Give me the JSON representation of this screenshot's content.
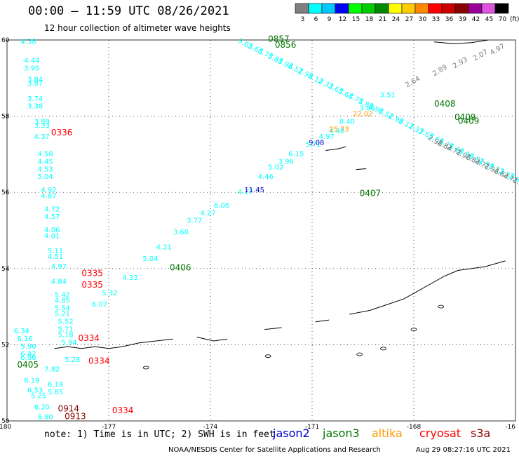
{
  "header": {
    "title": "00:00 — 11:59 UTC 08/26/2021",
    "subtitle": "12 hour collection of altimeter wave heights"
  },
  "colorbar": {
    "unit": "(ft)",
    "bins": [
      {
        "label": "3",
        "color": "#7f7f7f"
      },
      {
        "label": "6",
        "color": "#00ffff"
      },
      {
        "label": "9",
        "color": "#00c8ff"
      },
      {
        "label": "12",
        "color": "#0000ff"
      },
      {
        "label": "15",
        "color": "#00ff00"
      },
      {
        "label": "18",
        "color": "#00cc00"
      },
      {
        "label": "21",
        "color": "#008800"
      },
      {
        "label": "24",
        "color": "#ffff00"
      },
      {
        "label": "27",
        "color": "#ffcc00"
      },
      {
        "label": "30",
        "color": "#ff8800"
      },
      {
        "label": "33",
        "color": "#ff0000"
      },
      {
        "label": "36",
        "color": "#cc0000"
      },
      {
        "label": "39",
        "color": "#880000"
      },
      {
        "label": "42",
        "color": "#990099"
      },
      {
        "label": "45",
        "color": "#dd55dd"
      },
      {
        "label": "70",
        "color": "#000000"
      }
    ]
  },
  "chart_data": {
    "type": "scatter",
    "title": "00:00 — 11:59 UTC 08/26/2021",
    "subtitle": "12 hour collection of altimeter wave heights",
    "xlim": [
      -180,
      -165
    ],
    "ylim": [
      50,
      60
    ],
    "x_ticks": [
      "-180",
      "-177",
      "-174",
      "-171",
      "-168",
      "-16"
    ],
    "y_ticks": [
      "60",
      "58",
      "56",
      "54",
      "52",
      "50"
    ],
    "grid": true,
    "series": [
      {
        "name": "jason2",
        "color": "#0000cc",
        "points": [
          {
            "lon": -171.1,
            "lat": 57.25,
            "swh": 9.08
          },
          {
            "lon": -173.0,
            "lat": 56.0,
            "swh": 11.45
          }
        ]
      },
      {
        "name": "jason3",
        "color": "#007700",
        "points": [
          {
            "lon": -169.6,
            "lat": 55.9,
            "swh": 0.0,
            "time": "0407"
          },
          {
            "lon": -167.4,
            "lat": 58.25,
            "swh": 0.0,
            "time": "0408"
          },
          {
            "lon": -175.2,
            "lat": 53.95,
            "swh": 0.0,
            "time": "0406"
          },
          {
            "lon": -179.7,
            "lat": 51.4,
            "swh": 0.0,
            "time": "0405"
          }
        ]
      },
      {
        "name": "altika",
        "color": "#ff9900",
        "points": [
          {
            "lon": -170.5,
            "lat": 57.6,
            "swh": 25.73
          },
          {
            "lon": -169.8,
            "lat": 58.0,
            "swh": 22.02
          }
        ]
      },
      {
        "name": "cryosat",
        "color": "#ff0000",
        "points": [
          {
            "lon": -178.7,
            "lat": 57.5,
            "time": "0336"
          },
          {
            "lon": -177.8,
            "lat": 53.8,
            "time": "0335"
          },
          {
            "lon": -177.8,
            "lat": 53.5,
            "time": "0335"
          },
          {
            "lon": -177.9,
            "lat": 52.1,
            "time": "0334"
          },
          {
            "lon": -177.6,
            "lat": 51.5,
            "time": "0334"
          },
          {
            "lon": -176.9,
            "lat": 50.2,
            "time": "0334"
          }
        ]
      },
      {
        "name": "s3a",
        "color": "#8b0000",
        "points": [
          {
            "lon": -178.5,
            "lat": 50.25,
            "time": "0914"
          },
          {
            "lon": -178.3,
            "lat": 50.05,
            "time": "0913"
          }
        ]
      }
    ],
    "tracks": [
      {
        "name": "west-track",
        "color": "#00ffff",
        "values": [
          {
            "lon": -179.6,
            "lat": 59.9,
            "v": "4.38"
          },
          {
            "lon": -179.5,
            "lat": 59.4,
            "v": "4.44"
          },
          {
            "lon": -179.5,
            "lat": 59.2,
            "v": "3.95"
          },
          {
            "lon": -179.4,
            "lat": 58.9,
            "v": "3.84"
          },
          {
            "lon": -179.4,
            "lat": 58.8,
            "v": "3.87"
          },
          {
            "lon": -179.4,
            "lat": 58.4,
            "v": "3.74"
          },
          {
            "lon": -179.4,
            "lat": 58.2,
            "v": "3.38"
          },
          {
            "lon": -179.2,
            "lat": 57.8,
            "v": "3.89"
          },
          {
            "lon": -179.2,
            "lat": 57.7,
            "v": "3.33"
          },
          {
            "lon": -179.2,
            "lat": 57.4,
            "v": "4.37"
          },
          {
            "lon": -179.1,
            "lat": 56.95,
            "v": "4.58"
          },
          {
            "lon": -179.1,
            "lat": 56.75,
            "v": "4.45"
          },
          {
            "lon": -179.1,
            "lat": 56.55,
            "v": "4.53"
          },
          {
            "lon": -179.1,
            "lat": 56.35,
            "v": "5.04"
          },
          {
            "lon": -179.0,
            "lat": 56.0,
            "v": "4.92"
          },
          {
            "lon": -179.0,
            "lat": 55.85,
            "v": "4.87"
          },
          {
            "lon": -178.9,
            "lat": 55.5,
            "v": "4.72"
          },
          {
            "lon": -178.9,
            "lat": 55.3,
            "v": "4.57"
          },
          {
            "lon": -178.9,
            "lat": 54.95,
            "v": "4.06"
          },
          {
            "lon": -178.9,
            "lat": 54.8,
            "v": "4.01"
          },
          {
            "lon": -178.8,
            "lat": 54.4,
            "v": "5.11"
          },
          {
            "lon": -178.8,
            "lat": 54.25,
            "v": "4.51"
          },
          {
            "lon": -178.7,
            "lat": 54.0,
            "v": "4.97"
          },
          {
            "lon": -178.7,
            "lat": 53.6,
            "v": "4.84"
          },
          {
            "lon": -178.6,
            "lat": 53.25,
            "v": "5.42"
          },
          {
            "lon": -178.6,
            "lat": 53.1,
            "v": "4.85"
          },
          {
            "lon": -178.6,
            "lat": 52.9,
            "v": "5.54"
          },
          {
            "lon": -178.6,
            "lat": 52.75,
            "v": "5.21"
          },
          {
            "lon": -178.5,
            "lat": 52.55,
            "v": "5.52"
          },
          {
            "lon": -178.5,
            "lat": 52.35,
            "v": "5.71"
          },
          {
            "lon": -178.5,
            "lat": 52.2,
            "v": "5.18"
          },
          {
            "lon": -178.4,
            "lat": 52.0,
            "v": "5.94"
          },
          {
            "lon": -178.3,
            "lat": 51.55,
            "v": "5.28"
          }
        ]
      },
      {
        "name": "sw-track",
        "color": "#00ffff",
        "values": [
          {
            "lon": -179.8,
            "lat": 52.3,
            "v": "6.34"
          },
          {
            "lon": -179.7,
            "lat": 52.1,
            "v": "6.16"
          },
          {
            "lon": -179.6,
            "lat": 51.9,
            "v": "5.90"
          },
          {
            "lon": -179.6,
            "lat": 51.7,
            "v": "6.42"
          },
          {
            "lon": -179.6,
            "lat": 51.6,
            "v": "6.96"
          },
          {
            "lon": -179.5,
            "lat": 51.0,
            "v": "6.19"
          },
          {
            "lon": -179.4,
            "lat": 50.75,
            "v": "6.53"
          },
          {
            "lon": -179.3,
            "lat": 50.6,
            "v": "5.25"
          },
          {
            "lon": -179.2,
            "lat": 50.3,
            "v": "6.20"
          },
          {
            "lon": -179.1,
            "lat": 50.05,
            "v": "6.80"
          },
          {
            "lon": -178.9,
            "lat": 51.3,
            "v": "7.82"
          },
          {
            "lon": -178.8,
            "lat": 50.9,
            "v": "6.14"
          },
          {
            "lon": -178.8,
            "lat": 50.7,
            "v": "5.85"
          }
        ]
      },
      {
        "name": "diagonal-track",
        "color": "#00ffff",
        "values": [
          {
            "lon": -177.5,
            "lat": 53.0,
            "v": "6.07"
          },
          {
            "lon": -177.2,
            "lat": 53.3,
            "v": "5.32"
          },
          {
            "lon": -176.6,
            "lat": 53.7,
            "v": "4.33"
          },
          {
            "lon": -176.0,
            "lat": 54.2,
            "v": "5.04"
          },
          {
            "lon": -175.6,
            "lat": 54.5,
            "v": "4.21"
          },
          {
            "lon": -175.1,
            "lat": 54.9,
            "v": "3.60"
          },
          {
            "lon": -174.7,
            "lat": 55.2,
            "v": "3.77"
          },
          {
            "lon": -174.3,
            "lat": 55.4,
            "v": "4.27"
          },
          {
            "lon": -173.9,
            "lat": 55.6,
            "v": "6.06"
          },
          {
            "lon": -173.2,
            "lat": 55.95,
            "v": "4.17"
          },
          {
            "lon": -172.6,
            "lat": 56.35,
            "v": "4.46"
          },
          {
            "lon": -172.3,
            "lat": 56.6,
            "v": "5.02"
          },
          {
            "lon": -172.0,
            "lat": 56.75,
            "v": "3.96"
          },
          {
            "lon": -171.7,
            "lat": 56.95,
            "v": "6.15"
          },
          {
            "lon": -171.2,
            "lat": 57.2,
            "v": "5.71"
          },
          {
            "lon": -170.8,
            "lat": 57.4,
            "v": "4.97"
          },
          {
            "lon": -170.5,
            "lat": 57.55,
            "v": "4.48"
          },
          {
            "lon": -170.2,
            "lat": 57.8,
            "v": "8.40"
          },
          {
            "lon": -169.6,
            "lat": 58.15,
            "v": "3.08"
          },
          {
            "lon": -169.0,
            "lat": 58.5,
            "v": "3.51"
          }
        ]
      },
      {
        "name": "gray-track",
        "color": "#7f7f7f",
        "values": [
          {
            "lon": -168.2,
            "lat": 58.75,
            "v": "2.64"
          },
          {
            "lon": -167.4,
            "lat": 59.05,
            "v": "2.89"
          },
          {
            "lon": -166.8,
            "lat": 59.25,
            "v": "2.93"
          },
          {
            "lon": -166.2,
            "lat": 59.45,
            "v": "2.07"
          },
          {
            "lon": -165.7,
            "lat": 59.6,
            "v": "4.97"
          }
        ]
      }
    ]
  },
  "legend": {
    "note": "note:  1) Time is in UTC; 2) SWH is in feet",
    "items": [
      {
        "label": "jason2",
        "color": "#0000cc"
      },
      {
        "label": "jason3",
        "color": "#007700"
      },
      {
        "label": "altika",
        "color": "#ff9900"
      },
      {
        "label": "cryosat",
        "color": "#ff0000"
      },
      {
        "label": "s3a",
        "color": "#8b0000"
      }
    ]
  },
  "footer": {
    "credit": "NOAA/NESDIS Center for Satellite Applications and Research",
    "timestamp": "Aug 29 08:27:16 UTC 2021"
  }
}
